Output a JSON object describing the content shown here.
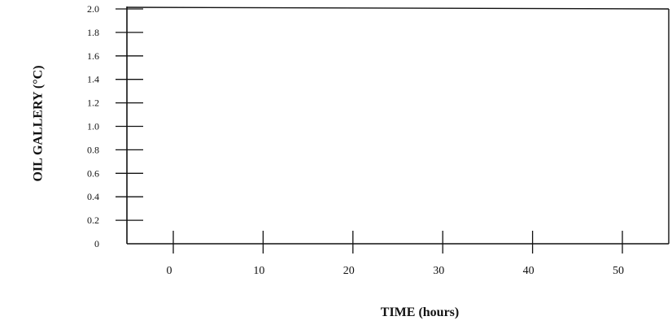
{
  "chart_data": {
    "type": "line",
    "title": "",
    "xlabel": "TIME (hours)",
    "ylabel": "OIL GALLERY (°C)",
    "xlim": [
      -5,
      55
    ],
    "ylim": [
      0,
      2.0
    ],
    "x_ticks": [
      0,
      10,
      20,
      30,
      40,
      50
    ],
    "x_tick_labels": [
      "0",
      "10",
      "20",
      "30",
      "40",
      "50"
    ],
    "y_ticks": [
      0,
      0.2,
      0.4,
      0.6,
      0.8,
      1.0,
      1.2,
      1.4,
      1.6,
      1.8,
      2.0
    ],
    "y_tick_labels": [
      "0",
      "0.2",
      "0.4",
      "0.6",
      "0.8",
      "1.0",
      "1.2",
      "1.4",
      "1.6",
      "1.8",
      "2.0"
    ],
    "grid": false,
    "legend": "none",
    "series": [],
    "colors": {
      "axis": "#111111",
      "background": "#ffffff"
    }
  }
}
